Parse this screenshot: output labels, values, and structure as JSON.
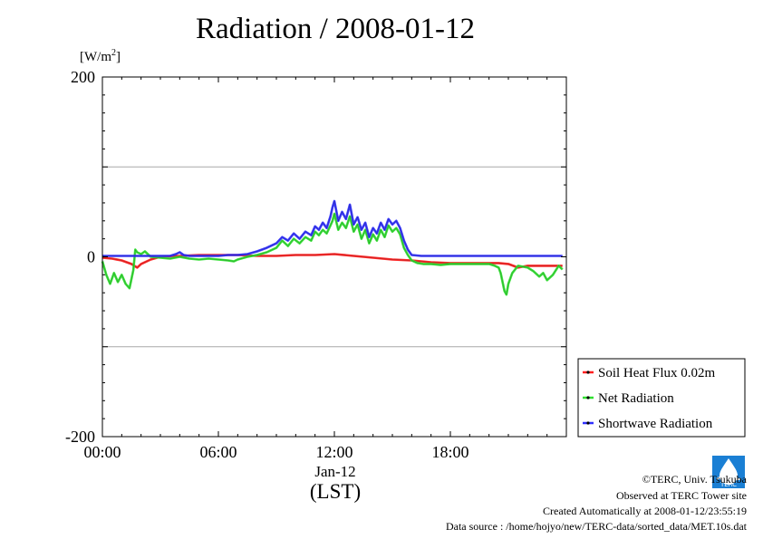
{
  "chart_data": {
    "type": "line",
    "title": "Radiation / 2008-01-12",
    "ylabel_unit": "[W/m2]",
    "x_date_label": "Jan-12",
    "x_axis_label": "(LST)",
    "xlim_hours": [
      0,
      24
    ],
    "ylim": [
      -200,
      200
    ],
    "yticks": [
      200,
      0,
      -200
    ],
    "ytick_labels": [
      "200",
      "0",
      "-200"
    ],
    "xticks_hours": [
      0,
      6,
      12,
      18
    ],
    "xtick_labels": [
      "00:00",
      "06:00",
      "12:00",
      "18:00"
    ],
    "grid_y": [
      100,
      -100
    ],
    "legend_position": "bottom-right",
    "series": [
      {
        "name": "Soil Heat Flux 0.02m",
        "color": "#ff2020",
        "x": [
          0,
          0.5,
          1,
          1.5,
          1.8,
          2,
          2.5,
          3,
          4,
          5,
          6,
          7,
          8,
          9,
          10,
          11,
          12,
          13,
          14,
          15,
          16,
          17,
          18,
          19,
          20,
          20.5,
          21,
          21.5,
          22,
          23,
          23.8
        ],
        "y": [
          -1,
          -2,
          -4,
          -8,
          -12,
          -8,
          -3,
          0,
          1,
          2,
          2,
          2,
          1,
          1,
          2,
          2,
          3,
          1,
          -1,
          -3,
          -4,
          -6,
          -7,
          -7,
          -7,
          -7,
          -8,
          -12,
          -10,
          -10,
          -10
        ]
      },
      {
        "name": "Net Radiation",
        "color": "#30e030",
        "x": [
          0,
          0.2,
          0.4,
          0.6,
          0.8,
          1.0,
          1.2,
          1.4,
          1.6,
          1.7,
          1.8,
          2.0,
          2.2,
          2.5,
          3.0,
          3.5,
          4.0,
          4.5,
          5.0,
          5.5,
          6.0,
          6.5,
          6.8,
          7.0,
          7.5,
          8.0,
          8.5,
          9.0,
          9.3,
          9.6,
          9.9,
          10.2,
          10.5,
          10.8,
          11.0,
          11.2,
          11.4,
          11.6,
          11.8,
          11.9,
          12.0,
          12.2,
          12.4,
          12.6,
          12.8,
          13.0,
          13.2,
          13.4,
          13.6,
          13.8,
          14.0,
          14.2,
          14.4,
          14.6,
          14.8,
          15.0,
          15.2,
          15.4,
          15.6,
          15.8,
          16.0,
          16.3,
          16.6,
          17.0,
          17.5,
          18.0,
          18.5,
          19.0,
          19.5,
          20.0,
          20.3,
          20.5,
          20.6,
          20.7,
          20.8,
          20.9,
          21.0,
          21.2,
          21.5,
          22.0,
          22.3,
          22.6,
          22.8,
          23.0,
          23.3,
          23.6,
          23.8
        ],
        "y": [
          -5,
          -20,
          -30,
          -18,
          -28,
          -20,
          -30,
          -35,
          -15,
          8,
          5,
          3,
          6,
          0,
          -1,
          -2,
          0,
          -2,
          -3,
          -2,
          -3,
          -4,
          -5,
          -3,
          0,
          2,
          5,
          10,
          18,
          12,
          20,
          15,
          22,
          18,
          28,
          24,
          30,
          26,
          35,
          40,
          48,
          30,
          38,
          32,
          45,
          28,
          36,
          20,
          30,
          15,
          25,
          18,
          30,
          22,
          35,
          28,
          32,
          25,
          10,
          2,
          -4,
          -7,
          -8,
          -8,
          -9,
          -8,
          -8,
          -8,
          -8,
          -8,
          -10,
          -12,
          -18,
          -28,
          -38,
          -42,
          -30,
          -18,
          -10,
          -12,
          -16,
          -22,
          -18,
          -26,
          -20,
          -10,
          -14
        ]
      },
      {
        "name": "Shortwave Radiation",
        "color": "#3030ff",
        "x": [
          0,
          0.5,
          1,
          1.5,
          2,
          2.5,
          3,
          3.5,
          3.8,
          4.0,
          4.2,
          4.5,
          5,
          5.5,
          6,
          6.5,
          7,
          7.5,
          8.0,
          8.5,
          9.0,
          9.3,
          9.6,
          9.9,
          10.2,
          10.5,
          10.8,
          11.0,
          11.2,
          11.4,
          11.6,
          11.8,
          11.9,
          12.0,
          12.2,
          12.4,
          12.6,
          12.8,
          13.0,
          13.2,
          13.4,
          13.6,
          13.8,
          14.0,
          14.2,
          14.4,
          14.6,
          14.8,
          15.0,
          15.2,
          15.4,
          15.6,
          15.8,
          16.0,
          16.5,
          17,
          18,
          19,
          20,
          21,
          22,
          23,
          23.8
        ],
        "y": [
          1,
          1,
          1,
          1,
          1,
          1,
          1,
          1,
          3,
          5,
          2,
          1,
          1,
          1,
          1,
          2,
          2,
          3,
          6,
          10,
          15,
          22,
          18,
          26,
          20,
          28,
          24,
          34,
          30,
          38,
          32,
          45,
          55,
          62,
          40,
          50,
          42,
          58,
          36,
          44,
          30,
          38,
          22,
          32,
          26,
          38,
          30,
          42,
          36,
          40,
          32,
          18,
          8,
          2,
          1,
          1,
          1,
          1,
          1,
          1,
          1,
          1,
          1
        ]
      }
    ]
  },
  "credits": {
    "line1": "©TERC, Univ. Tsukuba",
    "line2": "Observed at TERC Tower site",
    "line3": "Created Automatically at 2008-01-12/23:55:19",
    "line4": "Data source : /home/hojyo/new/TERC-data/sorted_data/MET.10s.dat"
  },
  "logo": {
    "text": "TERC",
    "color": "#1a7fd4"
  }
}
